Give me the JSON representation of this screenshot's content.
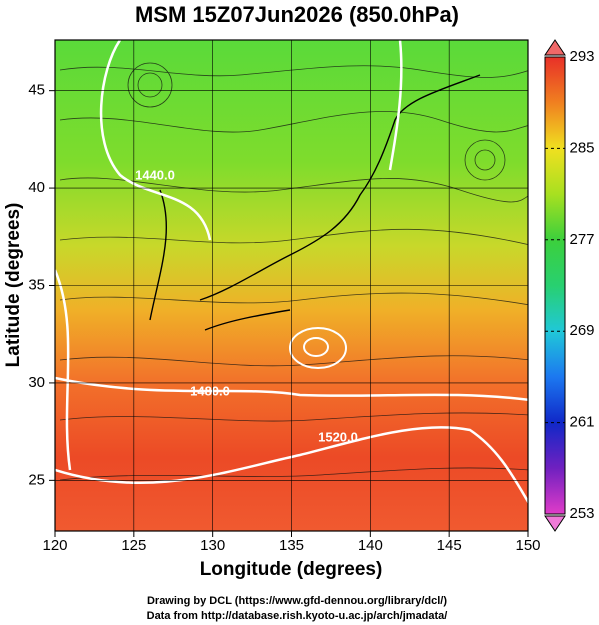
{
  "title": "MSM 15Z07Jun2026 (850.0hPa)",
  "x_axis": {
    "label": "Longitude (degrees)",
    "lim": [
      120,
      150
    ],
    "ticks": [
      120,
      125,
      130,
      135,
      140,
      145,
      150
    ]
  },
  "y_axis": {
    "label": "Latitude  (degrees)",
    "lim": [
      22.4,
      47.6
    ],
    "ticks": [
      25,
      30,
      35,
      40,
      45
    ]
  },
  "colorbar": {
    "lim": [
      253,
      293
    ],
    "ticks": [
      253,
      261,
      269,
      277,
      285,
      293
    ]
  },
  "contour_labels": [
    "1440.0",
    "1480.0",
    "1520.0"
  ],
  "footer": [
    "Drawing by DCL (https://www.gfd-dennou.org/library/dcl/)",
    "Data from http://database.rish.kyoto-u.ac.jp/arch/jmadata/"
  ]
}
